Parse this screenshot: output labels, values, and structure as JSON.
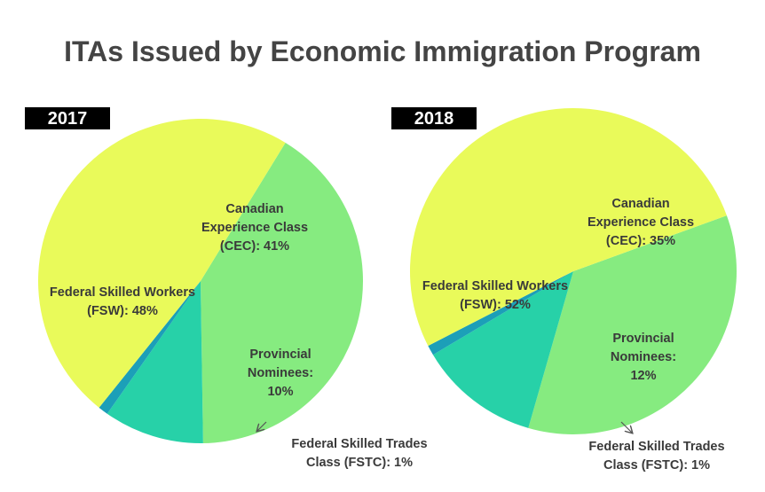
{
  "title": "ITAs Issued by Economic Immigration Program",
  "colors": {
    "fsw": "#e9fa5a",
    "cec": "#86eb80",
    "pnp": "#27d1a8",
    "fstc": "#1c9fb8",
    "year_badge": "#000000",
    "text": "#3a3a3a"
  },
  "chart_data": [
    {
      "type": "pie",
      "year": "2017",
      "slices": [
        {
          "key": "cec",
          "value": 41,
          "lines": [
            "Canadian",
            "Experience Class",
            "(CEC): 41%"
          ]
        },
        {
          "key": "pnp",
          "value": 10,
          "lines": [
            "Provincial",
            "Nominees:",
            "10%"
          ]
        },
        {
          "key": "fstc",
          "value": 1,
          "lines": [
            "Federal Skilled Trades",
            "Class (FSTC): 1%"
          ]
        },
        {
          "key": "fsw",
          "value": 48,
          "lines": [
            "Federal Skilled Workers",
            "(FSW): 48%"
          ]
        }
      ]
    },
    {
      "type": "pie",
      "year": "2018",
      "slices": [
        {
          "key": "cec",
          "value": 35,
          "lines": [
            "Canadian",
            "Experience Class",
            "(CEC): 35%"
          ]
        },
        {
          "key": "pnp",
          "value": 12,
          "lines": [
            "Provincial",
            "Nominees:",
            "12%"
          ]
        },
        {
          "key": "fstc",
          "value": 1,
          "lines": [
            "Federal Skilled Trades",
            "Class (FSTC): 1%"
          ]
        },
        {
          "key": "fsw",
          "value": 52,
          "lines": [
            "Federal Skilled Workers",
            "(FSW): 52%"
          ]
        }
      ]
    }
  ]
}
